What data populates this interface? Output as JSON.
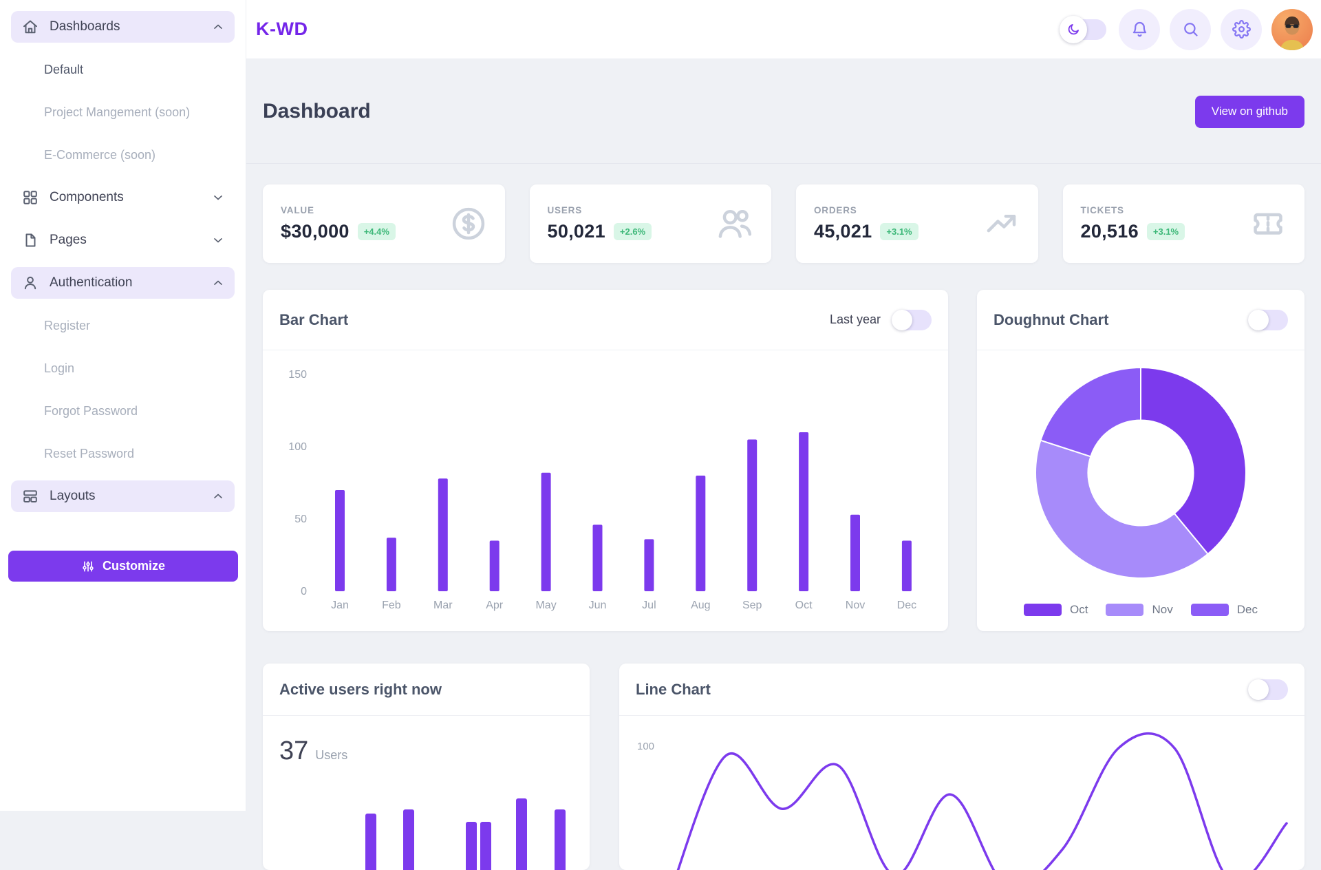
{
  "app": {
    "logo_text": "K-WD",
    "brand_color": "#7c3aed"
  },
  "header": {
    "icons": [
      "moon-icon",
      "bell-icon",
      "search-icon",
      "gear-icon"
    ],
    "dark_mode_toggle_state": "off"
  },
  "sidebar": {
    "sections": [
      {
        "label": "Dashboards",
        "icon": "home-icon",
        "state": "expanded",
        "active": true,
        "children": [
          {
            "label": "Default",
            "muted": false
          },
          {
            "label": "Project Mangement (soon)",
            "muted": true
          },
          {
            "label": "E-Commerce (soon)",
            "muted": true
          }
        ]
      },
      {
        "label": "Components",
        "icon": "components-icon",
        "state": "collapsed",
        "active": false,
        "children": []
      },
      {
        "label": "Pages",
        "icon": "pages-icon",
        "state": "collapsed",
        "active": false,
        "children": []
      },
      {
        "label": "Authentication",
        "icon": "user-icon",
        "state": "expanded",
        "active": true,
        "children": [
          {
            "label": "Register",
            "muted": true
          },
          {
            "label": "Login",
            "muted": true
          },
          {
            "label": "Forgot Password",
            "muted": true
          },
          {
            "label": "Reset Password",
            "muted": true
          }
        ]
      },
      {
        "label": "Layouts",
        "icon": "layouts-icon",
        "state": "expanded",
        "active": true,
        "children": []
      }
    ],
    "customize_label": "Customize"
  },
  "page": {
    "title": "Dashboard",
    "github_button": "View on github"
  },
  "stats": [
    {
      "label": "VALUE",
      "value": "$30,000",
      "delta": "+4.4%",
      "icon": "dollar-circle-icon"
    },
    {
      "label": "USERS",
      "value": "50,021",
      "delta": "+2.6%",
      "icon": "users-icon"
    },
    {
      "label": "ORDERS",
      "value": "45,021",
      "delta": "+3.1%",
      "icon": "trend-up-icon"
    },
    {
      "label": "TICKETS",
      "value": "20,516",
      "delta": "+3.1%",
      "icon": "ticket-icon"
    }
  ],
  "badge_colors": {
    "background": "#d9f6e7",
    "text": "#3eb879"
  },
  "chart_data": [
    {
      "id": "bar-chart",
      "type": "bar",
      "title": "Bar Chart",
      "toggle_label": "Last year",
      "toggle_state": "off",
      "categories": [
        "Jan",
        "Feb",
        "Mar",
        "Apr",
        "May",
        "Jun",
        "Jul",
        "Aug",
        "Sep",
        "Oct",
        "Nov",
        "Dec"
      ],
      "values": [
        70,
        37,
        78,
        35,
        82,
        46,
        36,
        80,
        105,
        110,
        53,
        35
      ],
      "yticks": [
        0,
        50,
        100,
        150
      ],
      "ylim": [
        0,
        150
      ],
      "grid": false,
      "bar_color": "#7c3aed"
    },
    {
      "id": "doughnut-chart",
      "type": "pie",
      "title": "Doughnut Chart",
      "toggle_state": "off",
      "labels": [
        "Oct",
        "Nov",
        "Dec"
      ],
      "values": [
        39,
        41,
        20
      ],
      "colors": [
        "#7c3aed",
        "#a78bfa",
        "#8b5cf6"
      ],
      "legend_position": "bottom",
      "hole_ratio": 0.5
    },
    {
      "id": "active-users",
      "type": "bar",
      "title": "Active users right now",
      "big_number": "37",
      "big_number_suffix": "Users",
      "values": [
        41,
        44,
        35,
        35,
        52,
        44
      ],
      "x_offsets": [
        149,
        204,
        295,
        316,
        368,
        424
      ],
      "bar_color": "#7c3aed"
    },
    {
      "id": "line-chart",
      "type": "line",
      "title": "Line Chart",
      "toggle_state": "off",
      "ytick_label": "100",
      "ylim": [
        0,
        100
      ],
      "values": [
        0,
        95,
        58,
        88,
        12,
        68,
        5,
        30,
        100,
        100,
        8,
        48
      ],
      "line_color": "#7c3aed",
      "grid": false
    }
  ]
}
